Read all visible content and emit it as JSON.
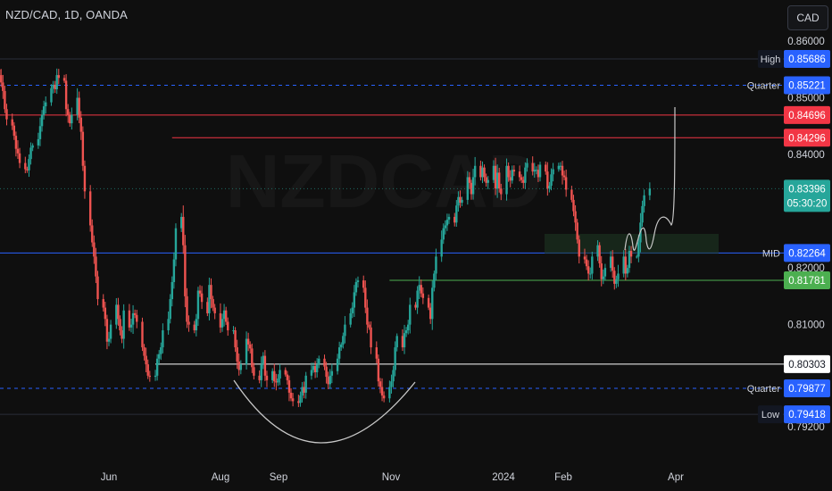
{
  "symbol_title": "NZD/CAD, 1D, OANDA",
  "currency_button": "CAD",
  "colors": {
    "background": "#0f0f0f",
    "up": "#26a69a",
    "down": "#ef5350",
    "red_level": "#f23645",
    "blue_level": "#2962ff",
    "green_level": "#4caf50",
    "white_level": "#ffffff",
    "axis_text": "#d1d4dc"
  },
  "chart_data": {
    "type": "candlestick",
    "symbol": "NZD/CAD",
    "timeframe": "1D",
    "source": "OANDA",
    "ylim": [
      0.7915,
      0.8618
    ],
    "y_ticks": [
      "0.86000",
      "0.85000",
      "0.84000",
      "0.82000",
      "0.81000",
      "0.79200"
    ],
    "x_ticks": [
      "Jun",
      "Aug",
      "Sep",
      "Nov",
      "2024",
      "Feb",
      "Apr"
    ],
    "last_price": "0.83396",
    "countdown": "05:30:20",
    "price_labels": [
      {
        "name": "High",
        "value": "0.85686",
        "color": "#2962ff"
      },
      {
        "name": "Quarter",
        "value": "0.85221",
        "color": "#2962ff"
      },
      {
        "name": "",
        "value": "0.84696",
        "color": "#f23645"
      },
      {
        "name": "",
        "value": "0.84296",
        "color": "#f23645"
      },
      {
        "name": "MID",
        "value": "0.82264",
        "color": "#2962ff"
      },
      {
        "name": "",
        "value": "0.81781",
        "color": "#4caf50"
      },
      {
        "name": "",
        "value": "0.80303",
        "color": "#ffffff"
      },
      {
        "name": "Quarter",
        "value": "0.79877",
        "color": "#2962ff"
      },
      {
        "name": "Low",
        "value": "0.79418",
        "color": "#2962ff"
      }
    ],
    "levels": [
      {
        "value": 0.85686,
        "style": "solid",
        "color": "#2a2e39"
      },
      {
        "value": 0.85221,
        "style": "dashed",
        "color": "#2962ff"
      },
      {
        "value": 0.84696,
        "style": "solid",
        "color": "#f23645"
      },
      {
        "value": 0.84296,
        "style": "solid",
        "color": "#f23645",
        "from_date": "2023-07-05"
      },
      {
        "value": 0.82264,
        "style": "solid",
        "color": "#2962ff"
      },
      {
        "value": 0.81781,
        "style": "solid",
        "color": "#4caf50",
        "from_date": "2023-10-30"
      },
      {
        "value": 0.80303,
        "style": "solid",
        "color": "#ffffff",
        "from_date": "2023-06-26"
      },
      {
        "value": 0.79877,
        "style": "dashed",
        "color": "#2962ff"
      },
      {
        "value": 0.79418,
        "style": "solid",
        "color": "#2a2e39"
      }
    ],
    "closes": [
      0.854,
      0.8527,
      0.8512,
      0.848,
      0.8462,
      0.8451,
      0.8433,
      0.841,
      0.8402,
      0.8385,
      0.8374,
      0.8372,
      0.8392,
      0.8412,
      0.8416,
      0.8427,
      0.845,
      0.847,
      0.8485,
      0.8492,
      0.8517,
      0.8523,
      0.8515,
      0.854,
      0.8535,
      0.853,
      0.848,
      0.847,
      0.8455,
      0.847,
      0.85,
      0.8465,
      0.844,
      0.838,
      0.8335,
      0.8275,
      0.8245,
      0.822,
      0.8185,
      0.8145,
      0.813,
      0.811,
      0.807,
      0.8075,
      0.81,
      0.8135,
      0.811,
      0.809,
      0.8075,
      0.8125,
      0.8095,
      0.81,
      0.812,
      0.8117,
      0.8105,
      0.806,
      0.8045,
      0.803,
      0.801,
      0.8008,
      0.801,
      0.804,
      0.8048,
      0.806,
      0.809,
      0.811,
      0.8145,
      0.8175,
      0.8215,
      0.827,
      0.829,
      0.824,
      0.815,
      0.8105,
      0.81,
      0.809,
      0.811,
      0.816,
      0.8155,
      0.814,
      0.812,
      0.817,
      0.8145,
      0.813,
      0.812,
      0.8095,
      0.811,
      0.8125,
      0.8105,
      0.809,
      0.809,
      0.806,
      0.8035,
      0.802,
      0.803,
      0.8075,
      0.8065,
      0.8058,
      0.8025,
      0.801,
      0.8002,
      0.803,
      0.8045,
      0.801,
      0.8002,
      0.8018,
      0.8,
      0.7998,
      0.8005,
      0.802,
      0.8012,
      0.8002,
      0.798,
      0.797,
      0.7965,
      0.7962,
      0.7975,
      0.799,
      0.798,
      0.801,
      0.802,
      0.8027,
      0.8016,
      0.803,
      0.804,
      0.8026,
      0.8008,
      0.7995,
      0.801,
      0.8018,
      0.804,
      0.806,
      0.8065,
      0.808,
      0.81,
      0.812,
      0.813,
      0.8157,
      0.8175,
      0.8178,
      0.8165,
      0.813,
      0.81,
      0.8095,
      0.806,
      0.804,
      0.8,
      0.799,
      0.7975,
      0.797,
      0.799,
      0.8,
      0.802,
      0.806,
      0.808,
      0.806,
      0.8085,
      0.809,
      0.81,
      0.8135,
      0.813,
      0.816,
      0.817,
      0.8155,
      0.8147,
      0.813,
      0.811,
      0.8165,
      0.819,
      0.822,
      0.825,
      0.827,
      0.8275,
      0.8285,
      0.829,
      0.828,
      0.831,
      0.8325,
      0.8315,
      0.832,
      0.836,
      0.835,
      0.833,
      0.836,
      0.838,
      0.836,
      0.8377,
      0.836,
      0.835,
      0.8355,
      0.838,
      0.834,
      0.8368,
      0.834,
      0.833,
      0.838,
      0.836,
      0.8354,
      0.8373,
      0.837,
      0.836,
      0.8355,
      0.835,
      0.8377,
      0.8385,
      0.837,
      0.8373,
      0.8373,
      0.836,
      0.8382,
      0.837,
      0.834,
      0.8345,
      0.8365,
      0.8374,
      0.838,
      0.838,
      0.8363,
      0.836,
      0.8338,
      0.832,
      0.83,
      0.828,
      0.825,
      0.822,
      0.8215,
      0.8203,
      0.819,
      0.819,
      0.822,
      0.824,
      0.8208,
      0.818,
      0.8185,
      0.82,
      0.822,
      0.8195,
      0.8172,
      0.818,
      0.819,
      0.822,
      0.819,
      0.82,
      0.823,
      0.822,
      0.822,
      0.8245,
      0.828,
      0.8309,
      0.8328,
      0.834
    ],
    "projection": {
      "type": "drawn-path",
      "end_value": 0.847
    },
    "demand_zone": {
      "from": 0.8225,
      "to": 0.826
    },
    "watermark": "NZDCAD"
  }
}
